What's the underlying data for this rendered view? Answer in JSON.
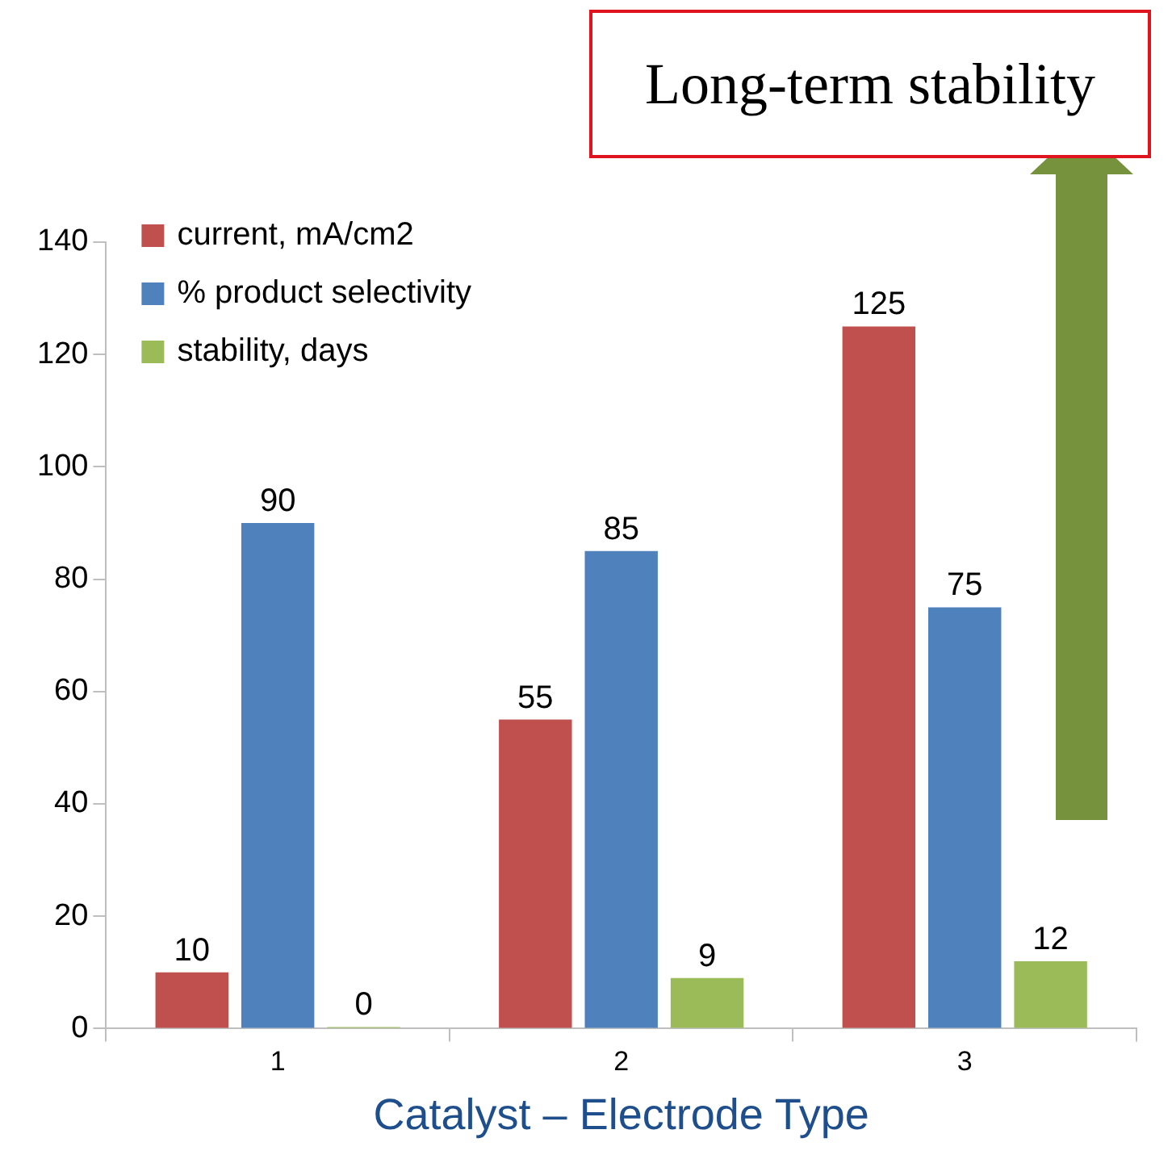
{
  "chart_data": {
    "type": "bar",
    "xlabel": "Catalyst – Electrode Type",
    "categories": [
      "1",
      "2",
      "3"
    ],
    "series": [
      {
        "name": "current, mA/cm2",
        "color": "#c0504d",
        "values": [
          10,
          55,
          125
        ]
      },
      {
        "name": "% product selectivity",
        "color": "#4f81bd",
        "values": [
          90,
          85,
          75
        ]
      },
      {
        "name": "stability, days",
        "color": "#9bbb59",
        "values": [
          0,
          9,
          12
        ]
      }
    ],
    "ylim": [
      0,
      140
    ],
    "yticks": [
      0,
      20,
      40,
      60,
      80,
      100,
      120,
      140
    ],
    "grid": false,
    "legend": "top left",
    "data_labels": true,
    "annotations": [
      "Long-term stability"
    ]
  }
}
